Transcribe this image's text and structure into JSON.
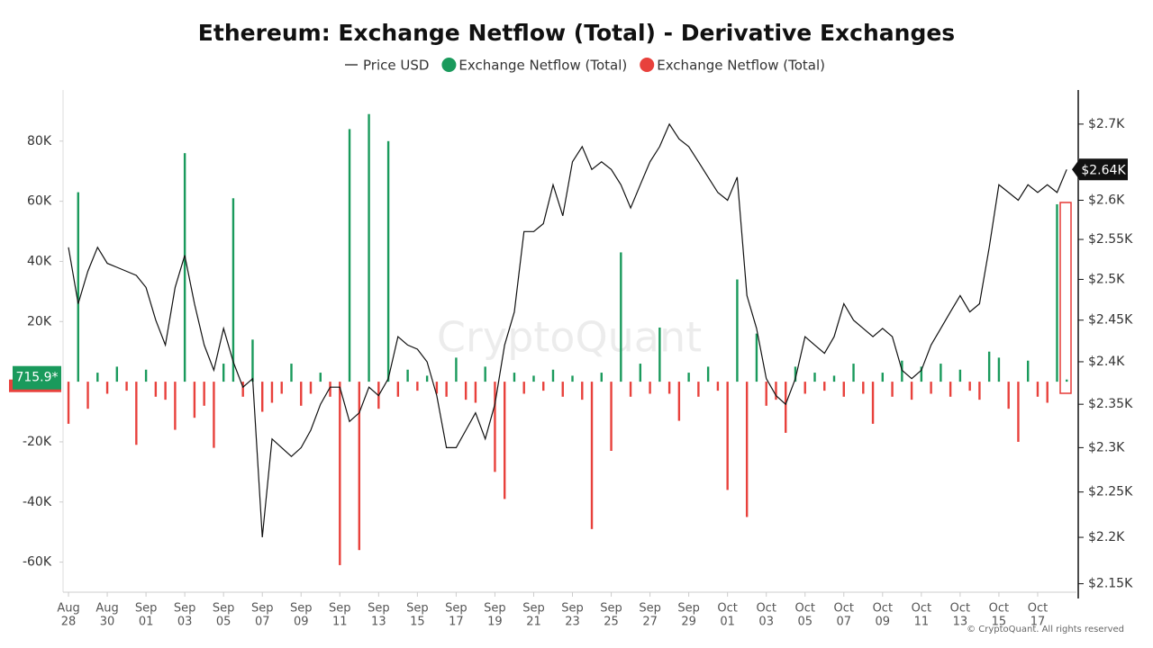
{
  "chart_data": {
    "type": "bar-line",
    "title": "Ethereum: Exchange Netflow (Total) - Derivative Exchanges",
    "watermark": "CryptoQuant",
    "footer": "© CryptoQuant. All rights reserved",
    "last_price_label": "$2.64K",
    "last_netflow_label": "715.9*",
    "x": [
      0,
      0.5,
      1,
      1.5,
      2,
      2.5,
      3,
      3.5,
      4,
      4.5,
      5,
      5.5,
      6,
      6.5,
      7,
      7.5,
      8,
      8.5,
      9,
      9.5,
      10,
      10.5,
      11,
      11.5,
      12,
      12.5,
      13,
      13.5,
      14,
      14.5,
      15,
      15.5,
      16,
      16.5,
      17,
      17.5,
      18,
      18.5,
      19,
      19.5,
      20,
      20.5,
      21,
      21.5,
      22,
      22.5,
      23,
      23.5,
      24,
      24.5,
      25,
      25.5,
      26,
      26.5,
      27,
      27.5,
      28,
      28.5,
      29,
      29.5,
      30,
      30.5,
      31,
      31.5,
      32,
      32.5,
      33,
      33.5,
      34,
      34.5,
      35,
      35.5,
      36,
      36.5,
      37,
      37.5,
      38,
      38.5,
      39,
      39.5,
      40,
      40.5,
      41,
      41.5,
      42,
      42.5,
      43,
      43.5,
      44,
      44.5,
      45,
      45.5,
      46,
      46.5,
      47,
      47.5,
      48,
      48.5,
      49,
      49.5,
      50,
      50.5,
      51,
      51.5
    ],
    "xlim": [
      -0.28,
      52
    ],
    "xticks": [
      {
        "value": 0,
        "label": [
          "Aug",
          "28"
        ]
      },
      {
        "value": 2,
        "label": [
          "Aug",
          "30"
        ]
      },
      {
        "value": 4,
        "label": [
          "Sep",
          "01"
        ]
      },
      {
        "value": 6,
        "label": [
          "Sep",
          "03"
        ]
      },
      {
        "value": 8,
        "label": [
          "Sep",
          "05"
        ]
      },
      {
        "value": 10,
        "label": [
          "Sep",
          "07"
        ]
      },
      {
        "value": 12,
        "label": [
          "Sep",
          "09"
        ]
      },
      {
        "value": 14,
        "label": [
          "Sep",
          "11"
        ]
      },
      {
        "value": 16,
        "label": [
          "Sep",
          "13"
        ]
      },
      {
        "value": 18,
        "label": [
          "Sep",
          "15"
        ]
      },
      {
        "value": 20,
        "label": [
          "Sep",
          "17"
        ]
      },
      {
        "value": 22,
        "label": [
          "Sep",
          "19"
        ]
      },
      {
        "value": 24,
        "label": [
          "Sep",
          "21"
        ]
      },
      {
        "value": 26,
        "label": [
          "Sep",
          "23"
        ]
      },
      {
        "value": 28,
        "label": [
          "Sep",
          "25"
        ]
      },
      {
        "value": 30,
        "label": [
          "Sep",
          "27"
        ]
      },
      {
        "value": 32,
        "label": [
          "Sep",
          "29"
        ]
      },
      {
        "value": 34,
        "label": [
          "Oct",
          "01"
        ]
      },
      {
        "value": 36,
        "label": [
          "Oct",
          "03"
        ]
      },
      {
        "value": 38,
        "label": [
          "Oct",
          "05"
        ]
      },
      {
        "value": 40,
        "label": [
          "Oct",
          "07"
        ]
      },
      {
        "value": 42,
        "label": [
          "Oct",
          "09"
        ]
      },
      {
        "value": 44,
        "label": [
          "Oct",
          "11"
        ]
      },
      {
        "value": 46,
        "label": [
          "Oct",
          "13"
        ]
      },
      {
        "value": 48,
        "label": [
          "Oct",
          "15"
        ]
      },
      {
        "value": 50,
        "label": [
          "Oct",
          "17"
        ]
      }
    ],
    "ylim": [
      -70000,
      97000
    ],
    "yticks": [
      {
        "value": -60000,
        "label": "-60K"
      },
      {
        "value": -40000,
        "label": "-40K"
      },
      {
        "value": -20000,
        "label": "-20K"
      },
      {
        "value": 20000,
        "label": "20K"
      },
      {
        "value": 40000,
        "label": "40K"
      },
      {
        "value": 60000,
        "label": "60K"
      },
      {
        "value": 80000,
        "label": "80K"
      }
    ],
    "y2lim": [
      2141,
      2746
    ],
    "y2scale": "log",
    "y2ticks": [
      {
        "value": 2150,
        "label": "$2.15K"
      },
      {
        "value": 2200,
        "label": "$2.2K"
      },
      {
        "value": 2250,
        "label": "$2.25K"
      },
      {
        "value": 2300,
        "label": "$2.3K"
      },
      {
        "value": 2350,
        "label": "$2.35K"
      },
      {
        "value": 2400,
        "label": "$2.4K"
      },
      {
        "value": 2450,
        "label": "$2.45K"
      },
      {
        "value": 2500,
        "label": "$2.5K"
      },
      {
        "value": 2550,
        "label": "$2.55K"
      },
      {
        "value": 2600,
        "label": "$2.6K"
      },
      {
        "value": 2700,
        "label": "$2.7K"
      }
    ],
    "grid": false,
    "series": [
      {
        "name": "Price USD",
        "type": "line",
        "axis": "y2",
        "color": "#111111",
        "values": [
          2540,
          2470,
          2510,
          2540,
          2520,
          2515,
          2510,
          2505,
          2490,
          2450,
          2420,
          2490,
          2530,
          2470,
          2420,
          2390,
          2440,
          2400,
          2370,
          2380,
          2200,
          2310,
          2300,
          2290,
          2300,
          2320,
          2350,
          2370,
          2370,
          2330,
          2340,
          2370,
          2360,
          2380,
          2430,
          2420,
          2415,
          2400,
          2360,
          2300,
          2300,
          2320,
          2340,
          2310,
          2350,
          2420,
          2460,
          2560,
          2560,
          2570,
          2620,
          2580,
          2650,
          2670,
          2640,
          2650,
          2640,
          2620,
          2590,
          2620,
          2650,
          2670,
          2700,
          2680,
          2670,
          2650,
          2630,
          2610,
          2600,
          2630,
          2480,
          2440,
          2380,
          2360,
          2350,
          2380,
          2430,
          2420,
          2410,
          2430,
          2470,
          2450,
          2440,
          2430,
          2440,
          2430,
          2390,
          2380,
          2390,
          2420,
          2440,
          2460,
          2480,
          2460,
          2470,
          2540,
          2620,
          2610,
          2600,
          2620,
          2610,
          2620,
          2610,
          2640
        ]
      },
      {
        "name": "Exchange Netflow (Total)",
        "type": "bar",
        "color": "#1a9a5c",
        "values": [
          null,
          63000,
          null,
          3000,
          null,
          5000,
          null,
          null,
          4000,
          null,
          null,
          null,
          76000,
          null,
          null,
          null,
          6000,
          61000,
          null,
          14000,
          null,
          null,
          null,
          6000,
          null,
          null,
          3000,
          null,
          null,
          84000,
          null,
          89000,
          null,
          80000,
          null,
          4000,
          null,
          2000,
          null,
          null,
          8000,
          null,
          null,
          5000,
          null,
          null,
          3000,
          null,
          2000,
          null,
          4000,
          null,
          2000,
          null,
          null,
          3000,
          null,
          43000,
          null,
          6000,
          null,
          18000,
          null,
          null,
          3000,
          null,
          5000,
          null,
          null,
          34000,
          null,
          16000,
          null,
          null,
          null,
          5000,
          null,
          3000,
          null,
          2000,
          null,
          6000,
          null,
          null,
          3000,
          null,
          7000,
          null,
          5000,
          null,
          6000,
          null,
          4000,
          null,
          null,
          10000,
          8000,
          null,
          null,
          7000,
          null,
          null,
          59000,
          715.9
        ]
      },
      {
        "name": "Exchange Netflow (Total)",
        "type": "bar",
        "color": "#e8413c",
        "values": [
          -14000,
          null,
          -9000,
          null,
          -4000,
          null,
          -3000,
          -21000,
          null,
          -5000,
          -6000,
          -16000,
          null,
          -12000,
          -8000,
          -22000,
          null,
          null,
          -5000,
          null,
          -10000,
          -7000,
          -4000,
          null,
          -8000,
          -4000,
          null,
          -5000,
          -61000,
          null,
          -56000,
          null,
          -9000,
          null,
          -5000,
          null,
          -3000,
          null,
          -4000,
          -5000,
          null,
          -6000,
          -7000,
          null,
          -30000,
          -39000,
          null,
          -4000,
          null,
          -3000,
          null,
          -5000,
          null,
          -6000,
          -49000,
          null,
          -23000,
          null,
          -5000,
          null,
          -4000,
          null,
          -4000,
          -13000,
          null,
          -5000,
          null,
          -3000,
          -36000,
          null,
          -45000,
          null,
          -8000,
          -6000,
          -17000,
          null,
          -4000,
          null,
          -3000,
          null,
          -5000,
          null,
          -4000,
          -14000,
          null,
          -5000,
          null,
          -6000,
          null,
          -4000,
          null,
          -5000,
          null,
          -3000,
          -6000,
          null,
          null,
          -9000,
          -20000,
          null,
          -5000,
          -7000,
          null,
          null
        ]
      }
    ]
  }
}
